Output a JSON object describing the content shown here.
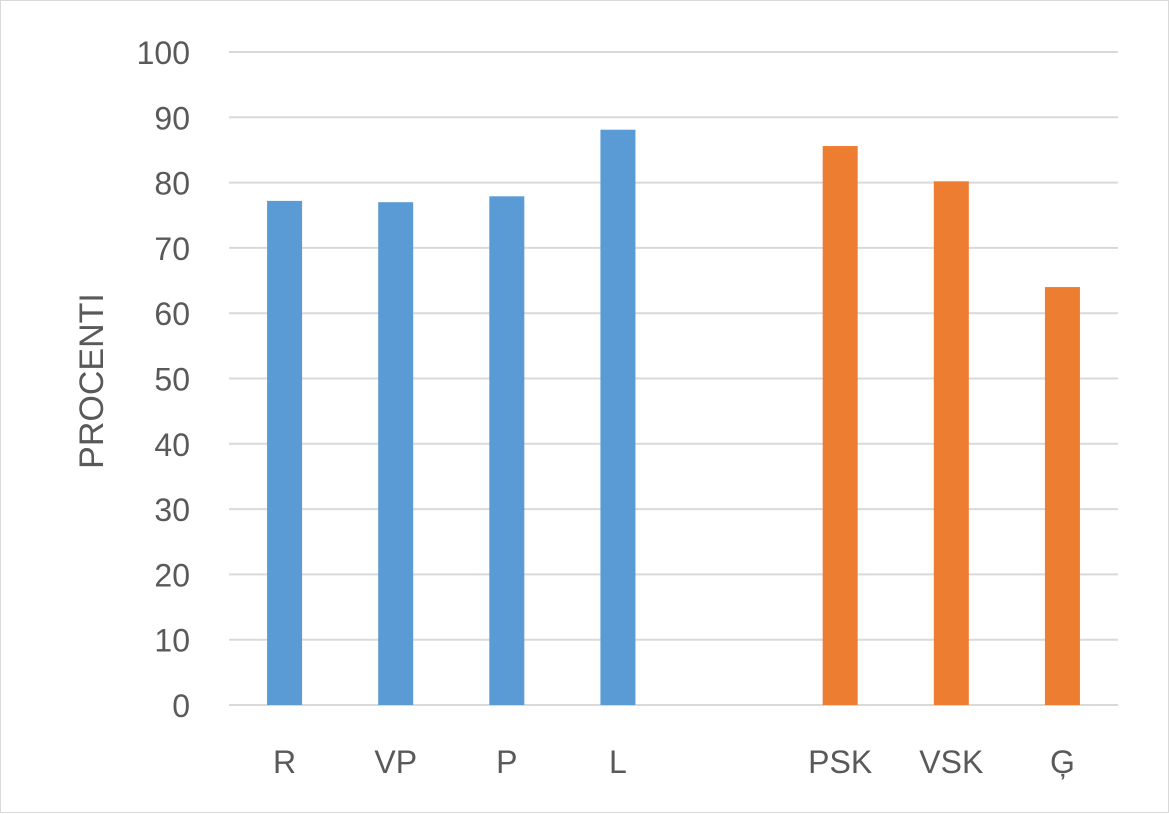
{
  "chart_data": {
    "type": "bar",
    "title": "",
    "xlabel": "",
    "ylabel": "PROCENTI",
    "ylim": [
      0,
      100
    ],
    "yticks": [
      0,
      10,
      20,
      30,
      40,
      50,
      60,
      70,
      80,
      90,
      100
    ],
    "grid": true,
    "legend": "none",
    "categories": [
      "R",
      "VP",
      "P",
      "L",
      "",
      "PSK",
      "VSK",
      "Ģ"
    ],
    "values": [
      77.2,
      77.0,
      77.9,
      88.1,
      null,
      85.6,
      80.2,
      64.0
    ],
    "colors": [
      "#5b9bd5",
      "#5b9bd5",
      "#5b9bd5",
      "#5b9bd5",
      null,
      "#ed7d31",
      "#ed7d31",
      "#ed7d31"
    ],
    "gridline_color": "#d9d9d9"
  }
}
